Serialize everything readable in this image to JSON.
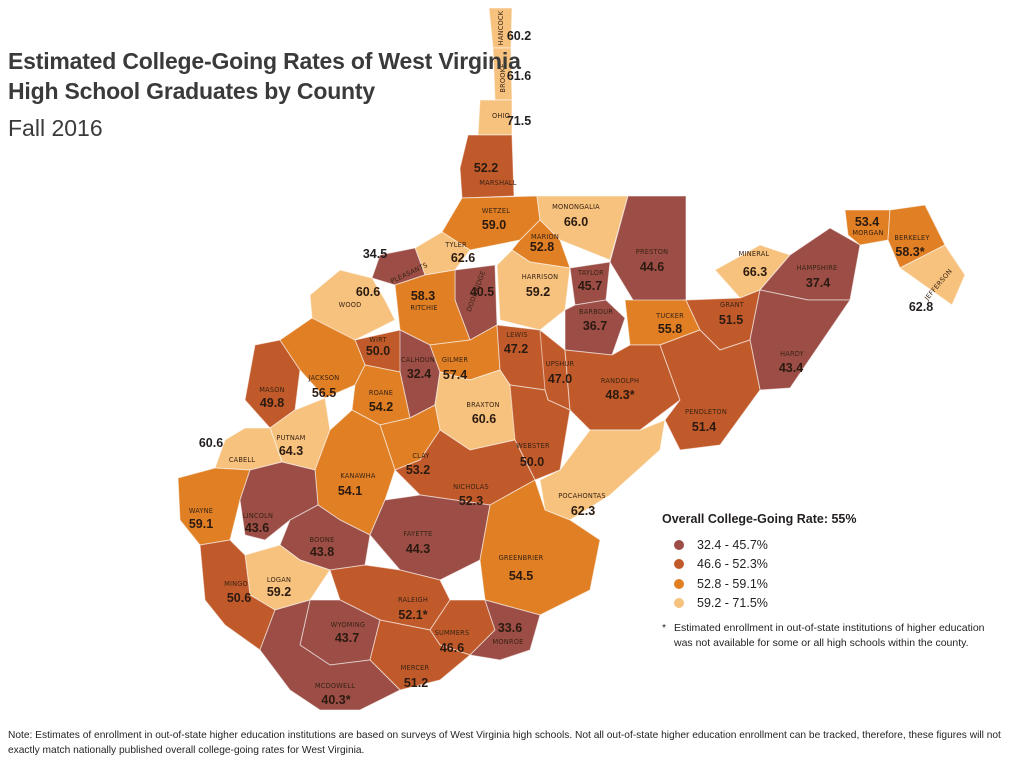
{
  "title_line1": "Estimated College-Going Rates of West Virginia",
  "title_line2": "High School Graduates by County",
  "subtitle": "Fall 2016",
  "legend": {
    "title": "Overall College-Going Rate: 55%",
    "ranges": [
      {
        "label": "32.4 - 45.7%",
        "color": "#9b4d46"
      },
      {
        "label": "46.6 - 52.3%",
        "color": "#c15a2a"
      },
      {
        "label": "52.8 - 59.1%",
        "color": "#e07f24"
      },
      {
        "label": "59.2 - 71.5%",
        "color": "#f6c27e"
      }
    ],
    "note_marker": "*",
    "note": "Estimated enrollment in out-of-state institutions of higher education was not available for some or all high schools within the county."
  },
  "footnote": "Note: Estimates of enrollment in out-of-state higher education institutions are based on surveys of West Virginia high schools. Not all out-of-state higher education enrollment can be tracked, therefore, these figures will not exactly match nationally published overall college-going rates for West Virginia.",
  "counties": [
    {
      "name": "HANCOCK",
      "value": "60.2",
      "class": 4
    },
    {
      "name": "BROOKE",
      "value": "61.6",
      "class": 4
    },
    {
      "name": "OHIO",
      "value": "71.5",
      "class": 4
    },
    {
      "name": "MARSHALL",
      "value": "52.2",
      "class": 2
    },
    {
      "name": "WETZEL",
      "value": "59.0",
      "class": 3
    },
    {
      "name": "MONONGALIA",
      "value": "66.0",
      "class": 4
    },
    {
      "name": "PRESTON",
      "value": "44.6",
      "class": 1
    },
    {
      "name": "MARION",
      "value": "52.8",
      "class": 3
    },
    {
      "name": "TYLER",
      "value": "62.6",
      "class": 4
    },
    {
      "name": "PLEASANTS",
      "value": "34.5",
      "class": 1
    },
    {
      "name": "DODDRIDGE",
      "value": "40.5",
      "class": 1
    },
    {
      "name": "HARRISON",
      "value": "59.2",
      "class": 4
    },
    {
      "name": "TAYLOR",
      "value": "45.7",
      "class": 1
    },
    {
      "name": "WOOD",
      "value": "60.6",
      "class": 4
    },
    {
      "name": "RITCHIE",
      "value": "58.3",
      "class": 3
    },
    {
      "name": "BARBOUR",
      "value": "36.7",
      "class": 1
    },
    {
      "name": "TUCKER",
      "value": "55.8",
      "class": 3
    },
    {
      "name": "MINERAL",
      "value": "66.3",
      "class": 4
    },
    {
      "name": "HAMPSHIRE",
      "value": "37.4",
      "class": 1
    },
    {
      "name": "MORGAN",
      "value": "53.4",
      "class": 3
    },
    {
      "name": "BERKELEY",
      "value": "58.3*",
      "class": 3
    },
    {
      "name": "JEFFERSON",
      "value": "62.8",
      "class": 4
    },
    {
      "name": "GRANT",
      "value": "51.5",
      "class": 2
    },
    {
      "name": "HARDY",
      "value": "43.4",
      "class": 1
    },
    {
      "name": "WIRT",
      "value": "50.0",
      "class": 2
    },
    {
      "name": "CALHOUN",
      "value": "32.4",
      "class": 1
    },
    {
      "name": "GILMER",
      "value": "57.4",
      "class": 3
    },
    {
      "name": "LEWIS",
      "value": "47.2",
      "class": 2
    },
    {
      "name": "UPSHUR",
      "value": "47.0",
      "class": 2
    },
    {
      "name": "RANDOLPH",
      "value": "48.3*",
      "class": 2
    },
    {
      "name": "PENDLETON",
      "value": "51.4",
      "class": 2
    },
    {
      "name": "MASON",
      "value": "49.8",
      "class": 2
    },
    {
      "name": "JACKSON",
      "value": "56.5",
      "class": 3
    },
    {
      "name": "ROANE",
      "value": "54.2",
      "class": 3
    },
    {
      "name": "BRAXTON",
      "value": "60.6",
      "class": 4
    },
    {
      "name": "WEBSTER",
      "value": "50.0",
      "class": 2
    },
    {
      "name": "PUTNAM",
      "value": "64.3",
      "class": 4
    },
    {
      "name": "CABELL",
      "value": "60.6",
      "class": 4
    },
    {
      "name": "CLAY",
      "value": "53.2",
      "class": 3
    },
    {
      "name": "KANAWHA",
      "value": "54.1",
      "class": 3
    },
    {
      "name": "NICHOLAS",
      "value": "52.3",
      "class": 2
    },
    {
      "name": "POCAHONTAS",
      "value": "62.3",
      "class": 4
    },
    {
      "name": "WAYNE",
      "value": "59.1",
      "class": 3
    },
    {
      "name": "LINCOLN",
      "value": "43.6",
      "class": 1
    },
    {
      "name": "BOONE",
      "value": "43.8",
      "class": 1
    },
    {
      "name": "FAYETTE",
      "value": "44.3",
      "class": 1
    },
    {
      "name": "GREENBRIER",
      "value": "54.5",
      "class": 3
    },
    {
      "name": "LOGAN",
      "value": "59.2",
      "class": 4
    },
    {
      "name": "MINGO",
      "value": "50.6",
      "class": 2
    },
    {
      "name": "RALEIGH",
      "value": "52.1*",
      "class": 2
    },
    {
      "name": "WYOMING",
      "value": "43.7",
      "class": 1
    },
    {
      "name": "SUMMERS",
      "value": "46.6",
      "class": 2
    },
    {
      "name": "MONROE",
      "value": "33.6",
      "class": 1
    },
    {
      "name": "MERCER",
      "value": "51.2",
      "class": 2
    },
    {
      "name": "MCDOWELL",
      "value": "40.3*",
      "class": 1
    }
  ]
}
